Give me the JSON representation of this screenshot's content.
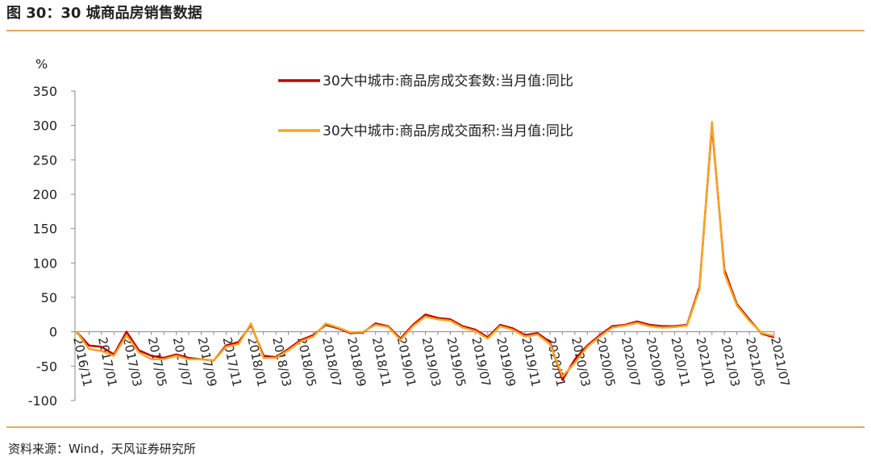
{
  "chart_data": {
    "type": "line",
    "title": "图 30：30 城商品房销售数据",
    "source": "资料来源：Wind，天风证券研究所",
    "y_label": "%",
    "categories": [
      "2016/11",
      null,
      "2017/01",
      null,
      "2017/03",
      null,
      "2017/05",
      null,
      "2017/07",
      null,
      "2017/09",
      null,
      "2017/11",
      null,
      "2018/01",
      null,
      "2018/03",
      null,
      "2018/05",
      null,
      "2018/07",
      null,
      "2018/09",
      null,
      "2018/11",
      null,
      "2019/01",
      null,
      "2019/03",
      null,
      "2019/05",
      null,
      "2019/07",
      null,
      "2019/09",
      null,
      "2019/11",
      null,
      "2020/01",
      null,
      "2020/03",
      null,
      "2020/05",
      null,
      "2020/07",
      null,
      "2020/09",
      null,
      "2020/11",
      null,
      "2021/01",
      null,
      "2021/03",
      null,
      "2021/05",
      null,
      "2021/07"
    ],
    "series": [
      {
        "name": "30大中城市:商品房成交套数:当月值:同比",
        "color": "#c00000",
        "values": [
          0,
          -20,
          -22,
          -33,
          0,
          -27,
          -35,
          -38,
          -33,
          -38,
          -40,
          -42,
          -20,
          -15,
          10,
          -35,
          -37,
          -25,
          -12,
          -5,
          10,
          5,
          -2,
          -1,
          12,
          8,
          -10,
          10,
          25,
          20,
          18,
          8,
          3,
          -8,
          10,
          5,
          -5,
          -2,
          -15,
          -70,
          -40,
          -20,
          -5,
          8,
          10,
          15,
          10,
          8,
          8,
          10,
          65,
          300,
          90,
          40,
          18,
          -3,
          -8
        ]
      },
      {
        "name": "30大中城市:商品房成交面积:当月值:同比",
        "color": "#f5a623",
        "values": [
          0,
          -25,
          -28,
          -35,
          -5,
          -30,
          -40,
          -40,
          -35,
          -40,
          -40,
          -42,
          -22,
          -18,
          12,
          -38,
          -38,
          -27,
          -14,
          -7,
          12,
          6,
          -1,
          0,
          10,
          7,
          -12,
          8,
          22,
          18,
          16,
          6,
          1,
          -10,
          8,
          3,
          -7,
          -4,
          -18,
          -65,
          -45,
          -22,
          -7,
          6,
          9,
          13,
          8,
          6,
          7,
          9,
          62,
          305,
          85,
          38,
          16,
          -2,
          -6
        ]
      }
    ],
    "ylim": [
      -100,
      350
    ],
    "yticks": [
      -100,
      -50,
      0,
      50,
      100,
      150,
      200,
      250,
      300,
      350
    ]
  }
}
